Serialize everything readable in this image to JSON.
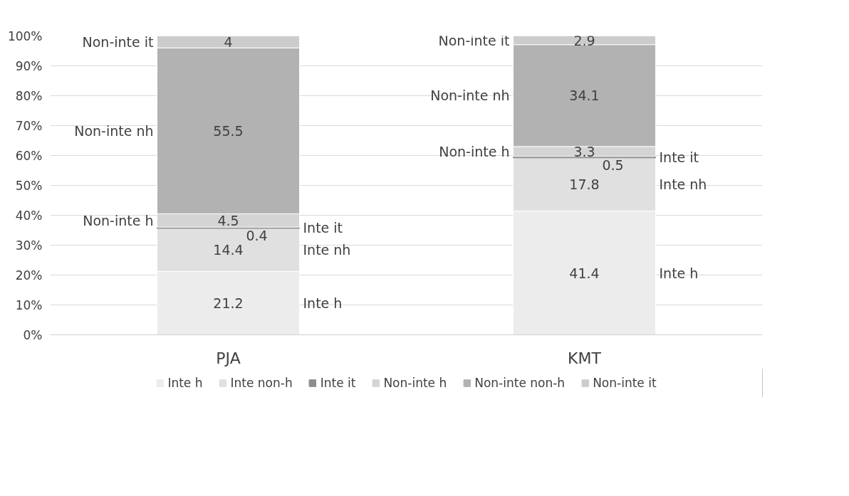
{
  "chart_data": {
    "type": "bar",
    "stacked": true,
    "categories": [
      "PJA",
      "KMT"
    ],
    "series": [
      {
        "name": "Inte h",
        "color": "#ececec",
        "values": [
          21.2,
          41.4
        ]
      },
      {
        "name": "Inte non-h",
        "color": "#e0e0e0",
        "values": [
          14.4,
          17.8
        ]
      },
      {
        "name": "Inte it",
        "color": "#8c8c8c",
        "values": [
          0.4,
          0.5
        ]
      },
      {
        "name": "Non-inte h",
        "color": "#d4d4d4",
        "values": [
          4.5,
          3.3
        ]
      },
      {
        "name": "Non-inte non-h",
        "color": "#b2b2b2",
        "values": [
          55.5,
          34.1
        ]
      },
      {
        "name": "Non-inte it",
        "color": "#cccccc",
        "values": [
          4,
          2.9
        ]
      }
    ],
    "data_labels": true,
    "annotations": [
      "Non-inte it",
      "Non-inte nh",
      "Non-inte h",
      "Inte it",
      "Inte nh",
      "Inte h",
      "Non-inte it",
      "Non-inte nh",
      "Non-inte h",
      "Inte it",
      "Inte nh",
      "Inte h"
    ],
    "ylim": [
      0,
      100
    ],
    "yticks": [
      {
        "value": 0,
        "label": "0%"
      },
      {
        "value": 10,
        "label": "10%"
      },
      {
        "value": 20,
        "label": "20%"
      },
      {
        "value": 30,
        "label": "30%"
      },
      {
        "value": 40,
        "label": "40%"
      },
      {
        "value": 50,
        "label": "50%"
      },
      {
        "value": 60,
        "label": "60%"
      },
      {
        "value": 70,
        "label": "70%"
      },
      {
        "value": 80,
        "label": "80%"
      },
      {
        "value": 90,
        "label": "90%"
      },
      {
        "value": 100,
        "label": "100%"
      }
    ],
    "grid": "y",
    "legend": "bottom"
  }
}
